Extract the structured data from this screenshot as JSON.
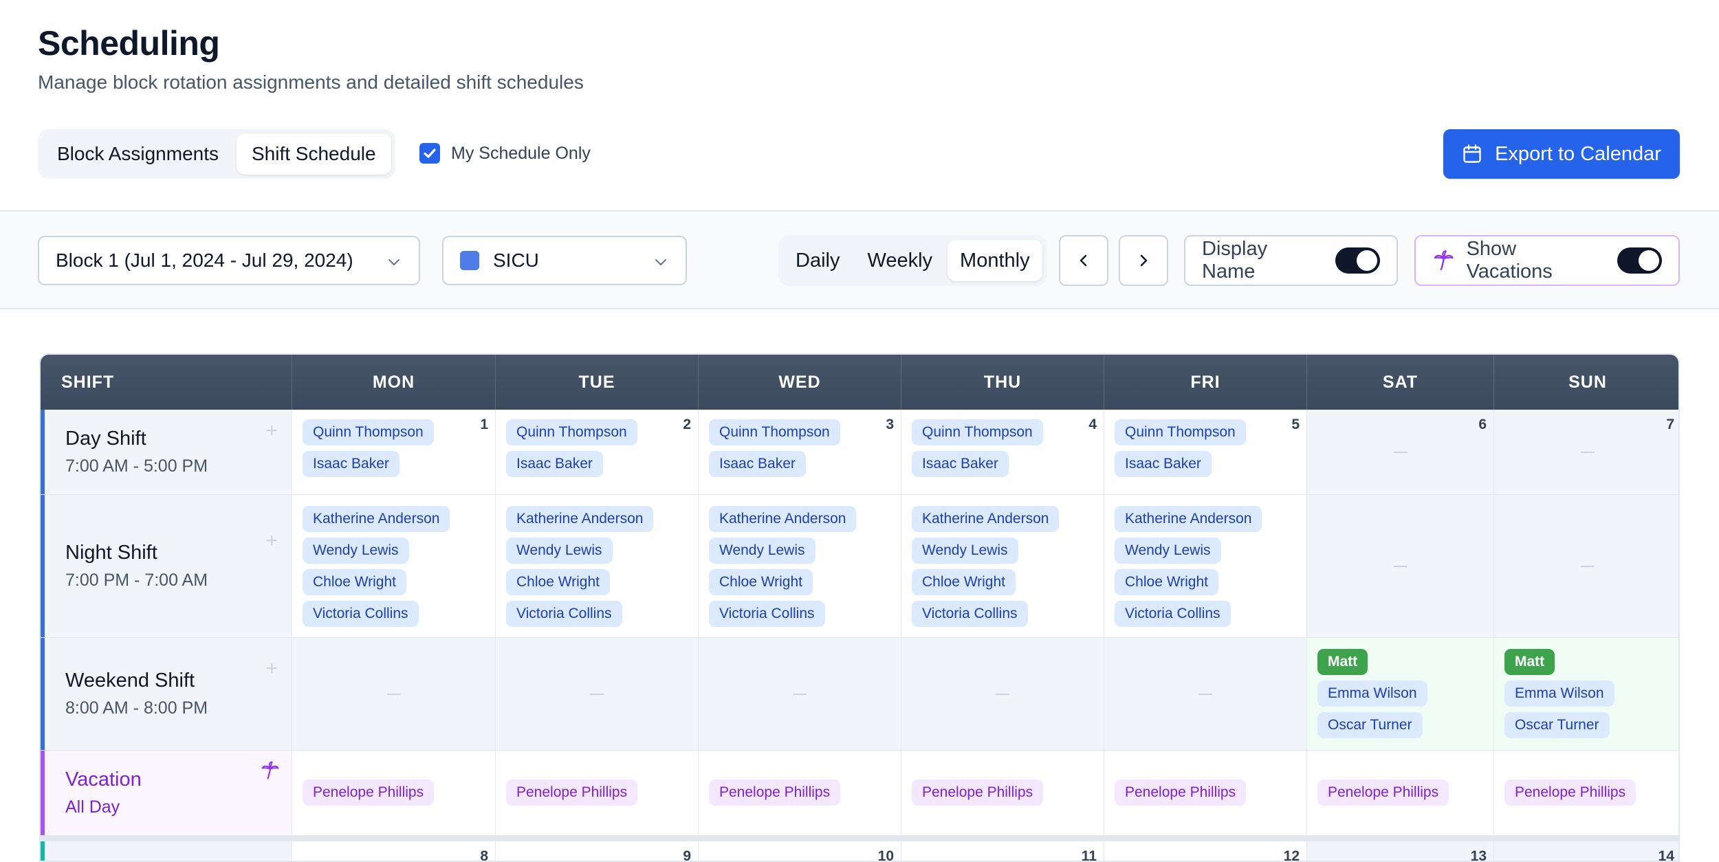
{
  "header": {
    "title": "Scheduling",
    "subtitle": "Manage block rotation assignments and detailed shift schedules",
    "tabs": [
      {
        "label": "Block Assignments",
        "active": false
      },
      {
        "label": "Shift Schedule",
        "active": true
      }
    ],
    "my_schedule_label": "My Schedule Only",
    "my_schedule_checked": true,
    "export_label": "Export to Calendar",
    "export_icon": "calendar-icon"
  },
  "toolbar": {
    "block_select": "Block 1 (Jul 1, 2024 - Jul 29, 2024)",
    "unit_select": "SICU",
    "unit_color": "#4f7ce8",
    "views": [
      {
        "label": "Daily",
        "active": false
      },
      {
        "label": "Weekly",
        "active": false
      },
      {
        "label": "Monthly",
        "active": true
      }
    ],
    "display_name_label": "Display Name",
    "display_name_on": true,
    "show_vacations_label": "Show Vacations",
    "show_vacations_on": true,
    "vacation_icon": "palm-tree-icon"
  },
  "grid": {
    "shift_header": "SHIFT",
    "days": [
      "MON",
      "TUE",
      "WED",
      "THU",
      "FRI",
      "SAT",
      "SUN"
    ],
    "day_numbers": [
      "1",
      "2",
      "3",
      "4",
      "5",
      "6",
      "7"
    ],
    "next_week_numbers": [
      "8",
      "9",
      "10",
      "11",
      "12",
      "13",
      "14"
    ],
    "rows": {
      "day": {
        "name": "Day Shift",
        "time": "7:00 AM - 5:00 PM"
      },
      "night": {
        "name": "Night Shift",
        "time": "7:00 PM - 7:00 AM"
      },
      "weekend": {
        "name": "Weekend Shift",
        "time": "8:00 AM - 8:00 PM"
      },
      "vacation": {
        "name": "Vacation",
        "time": "All Day"
      }
    },
    "day_shift_staff": [
      "Quinn Thompson",
      "Isaac Baker"
    ],
    "night_shift_staff": [
      "Katherine Anderson",
      "Wendy Lewis",
      "Chloe Wright",
      "Victoria Collins"
    ],
    "weekend_badge": "Matt",
    "weekend_staff": [
      "Emma Wilson",
      "Oscar Turner"
    ],
    "vacation_staff": "Penelope Phillips",
    "empty_mark": "—"
  }
}
